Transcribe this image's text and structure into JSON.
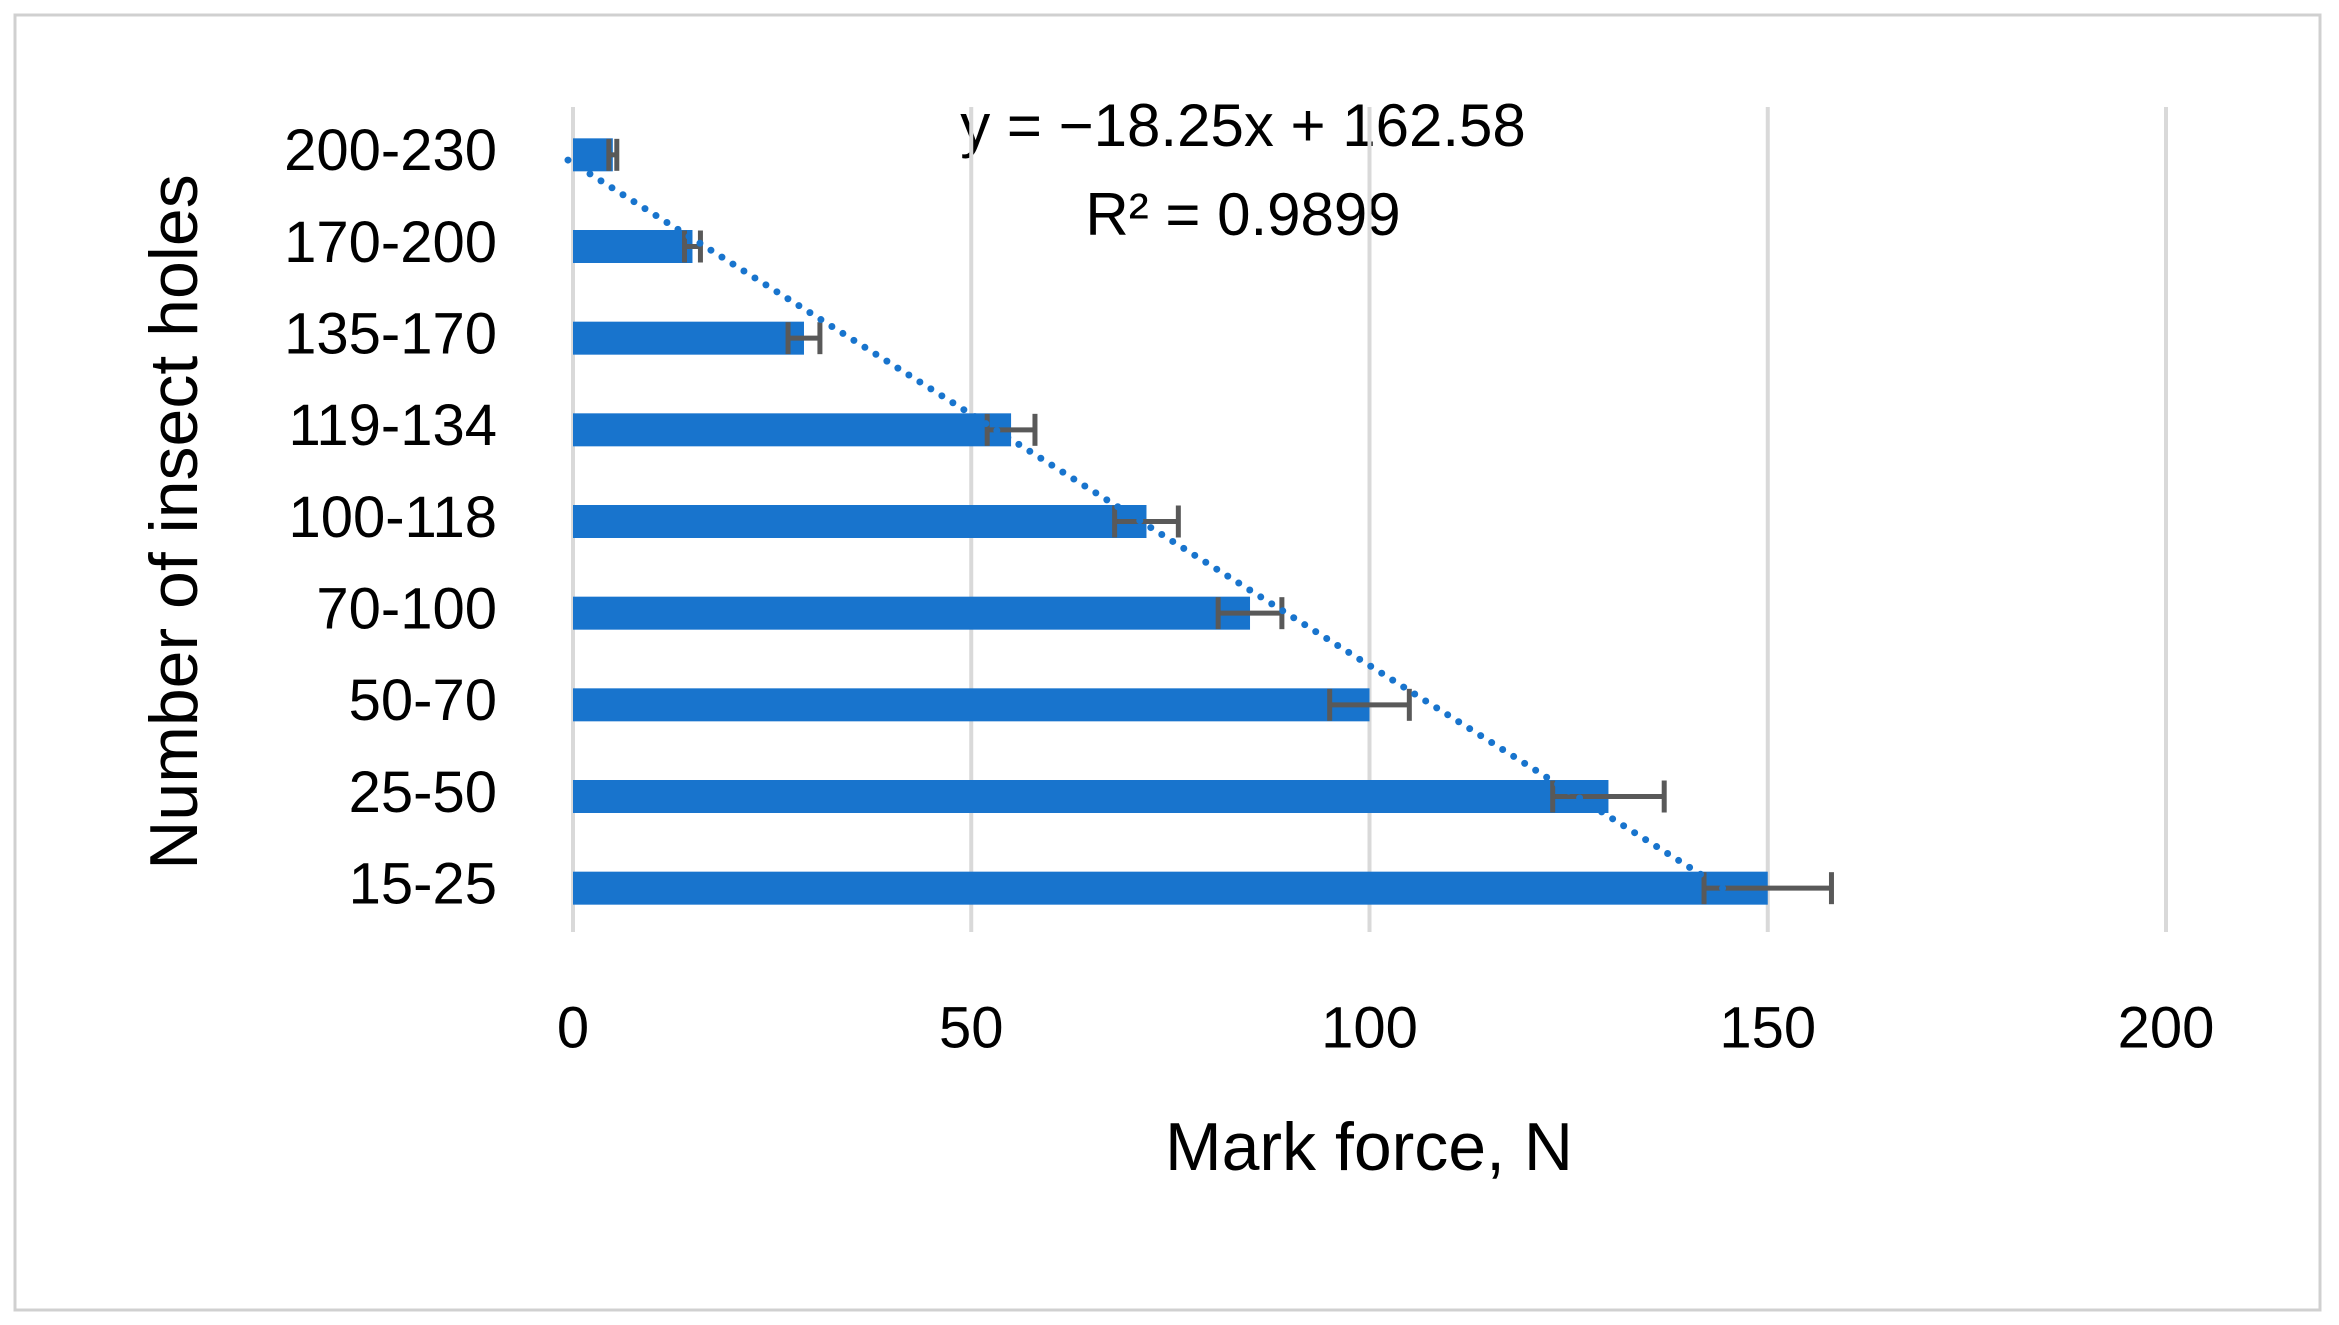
{
  "chart_data": {
    "type": "bar",
    "orientation": "horizontal",
    "x_label": "Mark force, N",
    "y_label": "Number of insect holes",
    "categories": [
      "15-25",
      "25-50",
      "50-70",
      "70-100",
      "100-118",
      "119-134",
      "135-170",
      "170-200",
      "200-230"
    ],
    "values": [
      150,
      130,
      100,
      85,
      72,
      55,
      29,
      15,
      5
    ],
    "errors": [
      8,
      7,
      5,
      4,
      4,
      3,
      2,
      1,
      0.5
    ],
    "color": "#1874cd",
    "error_color": "#595959",
    "xlim": [
      0,
      200
    ],
    "xticks": [
      0,
      50,
      100,
      150,
      200
    ],
    "grid": true,
    "trendline": {
      "equation": "y = −18.25x + 162.58",
      "r2_label": "R² = 0.9899",
      "slope": -18.25,
      "intercept": 162.58,
      "style": "dotted"
    }
  }
}
